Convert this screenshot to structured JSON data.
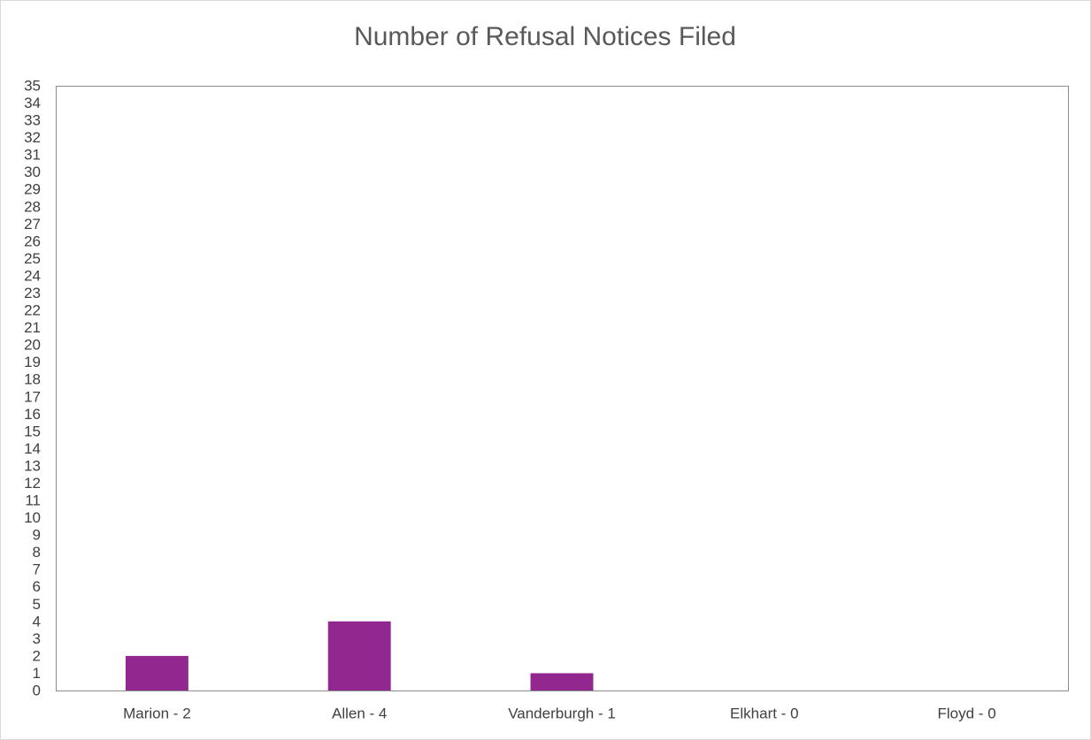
{
  "chart_data": {
    "type": "bar",
    "title": "Number of Refusal Notices Filed",
    "categories": [
      "Marion - 2",
      "Allen - 4",
      "Vanderburgh - 1",
      "Elkhart - 0",
      "Floyd - 0"
    ],
    "values": [
      2,
      4,
      1,
      0,
      0
    ],
    "color": "#92278f",
    "ylim": [
      0,
      35
    ],
    "yticks": [
      0,
      1,
      2,
      3,
      4,
      5,
      6,
      7,
      8,
      9,
      10,
      11,
      12,
      13,
      14,
      15,
      16,
      17,
      18,
      19,
      20,
      21,
      22,
      23,
      24,
      25,
      26,
      27,
      28,
      29,
      30,
      31,
      32,
      33,
      34,
      35
    ],
    "grid": false
  }
}
